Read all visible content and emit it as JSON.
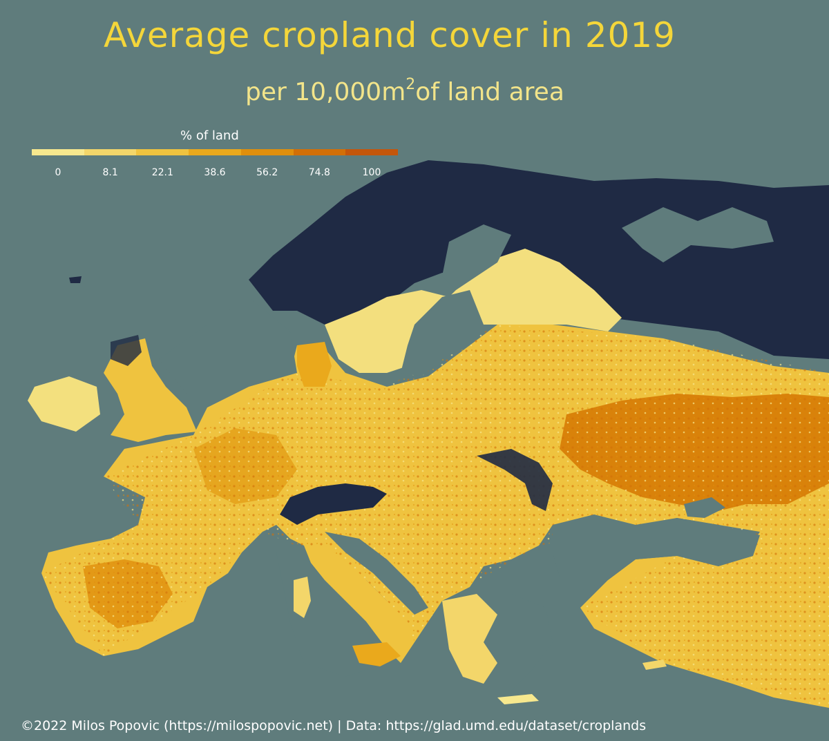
{
  "title": "Average cropland cover in 2019",
  "subtitle_main": "per 10,000m",
  "subtitle_sup": "2",
  "subtitle_tail": "of land area",
  "legend": {
    "title": "% of land",
    "ticks": [
      "0",
      "8.1",
      "22.1",
      "38.6",
      "56.2",
      "74.8",
      "100"
    ],
    "colors": [
      "#f7e88e",
      "#f3d66a",
      "#efc33f",
      "#eaa91c",
      "#e08f0c",
      "#d26f07",
      "#c4560b"
    ]
  },
  "map_colors": {
    "sea": "#5f7c7c",
    "no_data_land": "#1f2a44",
    "low": "#f7e88e",
    "medium": "#eaa91c",
    "high": "#d26f07"
  },
  "credit": "©2022 Milos Popovic (https://milospopovic.net) | Data: https://glad.umd.edu/dataset/croplands"
}
